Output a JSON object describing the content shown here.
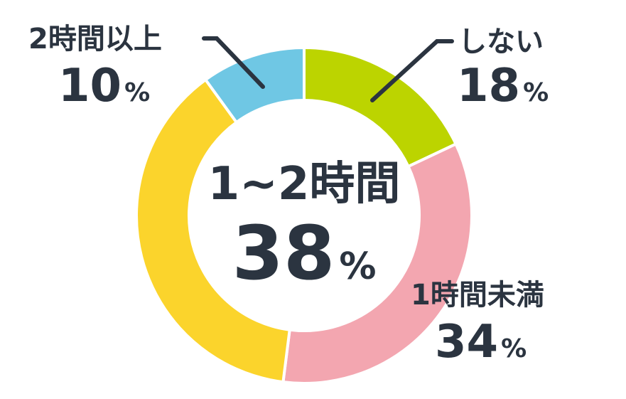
{
  "chart_data": {
    "type": "pie",
    "donut": true,
    "unit": "%",
    "slices": [
      {
        "label": "しない",
        "value": 18,
        "color": "#bcd400"
      },
      {
        "label": "1時間未満",
        "value": 34,
        "color": "#f3a6b0"
      },
      {
        "label": "1~2時間",
        "value": 38,
        "color": "#fbd42c"
      },
      {
        "label": "2時間以上",
        "value": 10,
        "color": "#6fc7e4"
      }
    ],
    "highlight": {
      "label": "1~2時間",
      "value": 38
    },
    "text_color": "#2b3440"
  }
}
